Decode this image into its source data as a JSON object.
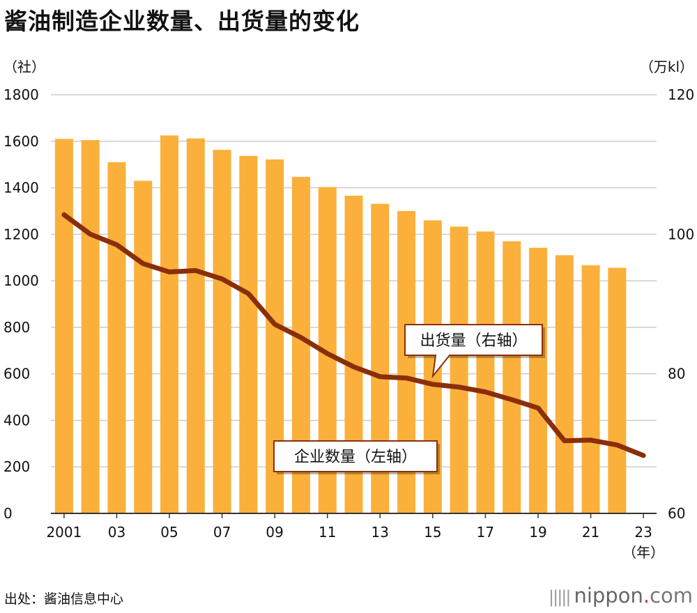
{
  "title": "酱油制造企业数量、出货量的变化",
  "source": "出处：酱油信息中心",
  "brand": {
    "mark": "|||||",
    "name": "nippon",
    "dot": ".",
    "tld": "com"
  },
  "colors": {
    "bar": "#FBB03B",
    "line": "#8B2E0A",
    "grid": "#cccccc",
    "axis": "#333333",
    "callout_border": "#8B2E0A"
  },
  "chart_data": {
    "type": "bar+line",
    "left_unit": "（社）",
    "right_unit": "（万kl）",
    "x_unit": "（年）",
    "left_axis": {
      "min": 0,
      "max": 1800,
      "ticks": [
        "0",
        "200",
        "400",
        "600",
        "800",
        "1000",
        "1200",
        "1400",
        "1600",
        "1800"
      ]
    },
    "right_axis": {
      "min": 60,
      "max": 120,
      "ticks": [
        "60",
        "80",
        "100",
        "120"
      ]
    },
    "years": [
      2001,
      2002,
      2003,
      2004,
      2005,
      2006,
      2007,
      2008,
      2009,
      2010,
      2011,
      2012,
      2013,
      2014,
      2015,
      2016,
      2017,
      2018,
      2019,
      2020,
      2021,
      2022,
      2023
    ],
    "x_tick_labels": [
      "2001",
      "03",
      "05",
      "07",
      "09",
      "11",
      "13",
      "15",
      "17",
      "19",
      "21",
      "23"
    ],
    "x_tick_years": [
      2001,
      2003,
      2005,
      2007,
      2009,
      2011,
      2013,
      2015,
      2017,
      2019,
      2021,
      2023
    ],
    "series": [
      {
        "name": "企业数量（左轴）",
        "axis": "left",
        "kind": "bar",
        "values": [
          1610,
          1605,
          1510,
          1430,
          1625,
          1612,
          1563,
          1537,
          1522,
          1447,
          1403,
          1366,
          1331,
          1300,
          1260,
          1233,
          1212,
          1170,
          1142,
          1110,
          1067,
          1056,
          null
        ]
      },
      {
        "name": "出货量（右轴）",
        "axis": "right",
        "kind": "line",
        "values": [
          102.8,
          100.0,
          98.5,
          95.8,
          94.6,
          94.8,
          93.6,
          91.5,
          87.1,
          85.2,
          82.9,
          81.0,
          79.6,
          79.4,
          78.5,
          78.1,
          77.4,
          76.3,
          75.1,
          70.4,
          70.5,
          69.8,
          68.3
        ]
      }
    ],
    "annotations": [
      {
        "text": "出货量（右轴）",
        "target": "line"
      },
      {
        "text": "企业数量（左轴）",
        "target": "bar"
      }
    ]
  }
}
